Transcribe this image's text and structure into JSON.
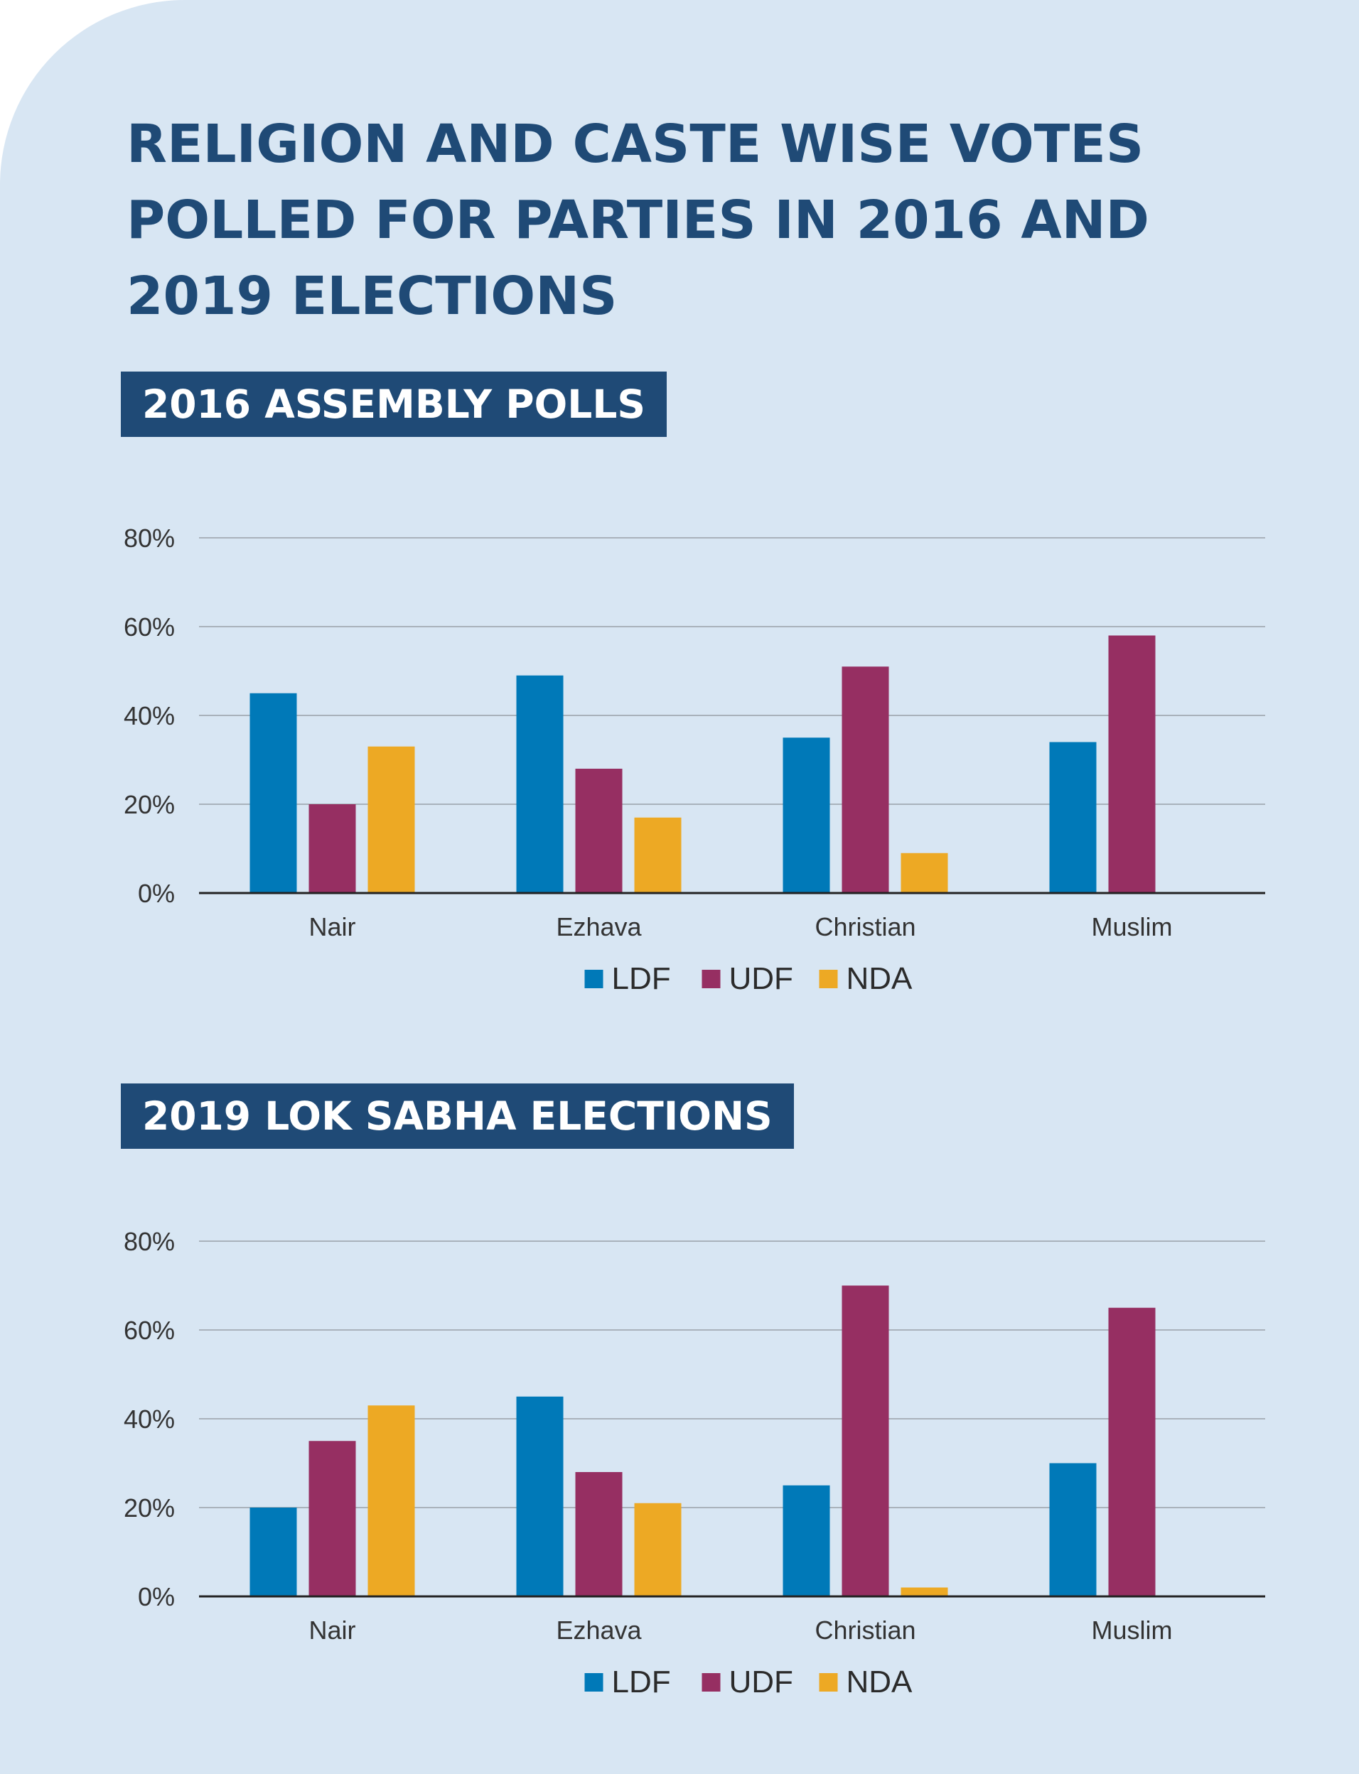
{
  "title": "RELIGION AND CASTE WISE VOTES POLLED FOR PARTIES IN 2016 AND 2019 ELECTIONS",
  "colors": {
    "background": "#d8e6f3",
    "title": "#1f4a76",
    "tag_bg": "#1f4a76",
    "LDF": "#0079b8",
    "UDF": "#962f62",
    "NDA": "#eda924"
  },
  "chart_data": [
    {
      "type": "bar",
      "title": "2016 ASSEMBLY POLLS",
      "categories": [
        "Nair",
        "Ezhava",
        "Christian",
        "Muslim"
      ],
      "series": [
        {
          "name": "LDF",
          "values": [
            45,
            49,
            35,
            34
          ]
        },
        {
          "name": "UDF",
          "values": [
            20,
            28,
            51,
            58
          ]
        },
        {
          "name": "NDA",
          "values": [
            33,
            17,
            9,
            0
          ]
        }
      ],
      "ylim": [
        0,
        80
      ],
      "yticks": [
        "0%",
        "20%",
        "40%",
        "60%",
        "80%"
      ],
      "grid": true,
      "legend": "bottom-center"
    },
    {
      "type": "bar",
      "title": "2019 LOK SABHA ELECTIONS",
      "categories": [
        "Nair",
        "Ezhava",
        "Christian",
        "Muslim"
      ],
      "series": [
        {
          "name": "LDF",
          "values": [
            20,
            45,
            25,
            30
          ]
        },
        {
          "name": "UDF",
          "values": [
            35,
            28,
            70,
            65
          ]
        },
        {
          "name": "NDA",
          "values": [
            43,
            21,
            2,
            0
          ]
        }
      ],
      "ylim": [
        0,
        80
      ],
      "yticks": [
        "0%",
        "20%",
        "40%",
        "60%",
        "80%"
      ],
      "grid": true,
      "legend": "bottom-center"
    }
  ]
}
